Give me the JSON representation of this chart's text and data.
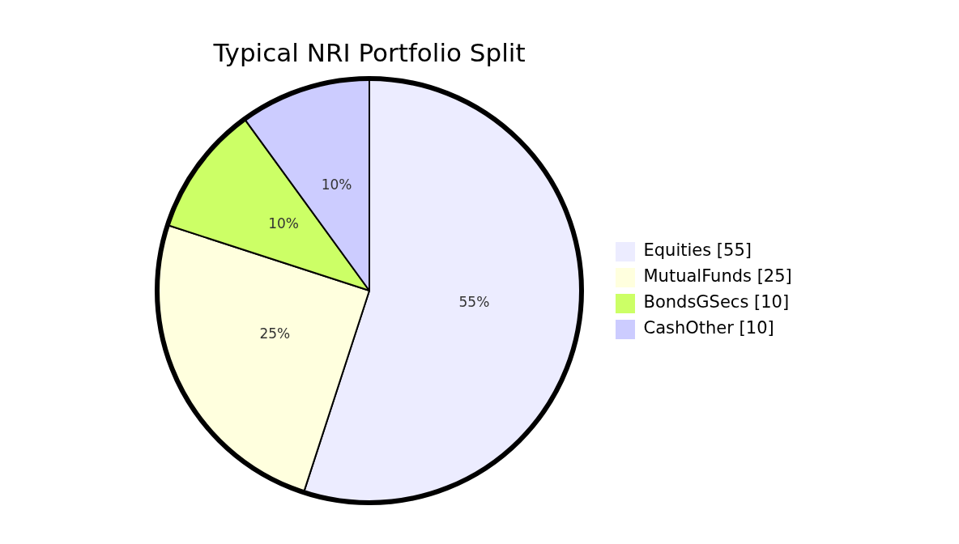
{
  "chart_data": {
    "type": "pie",
    "title": "Typical NRI Portfolio Split",
    "categories": [
      "Equities [55]",
      "MutualFunds [25]",
      "BondsGSecs [10]",
      "CashOther [10]"
    ],
    "values": [
      55,
      25,
      10,
      10
    ],
    "colors": [
      "#ececff",
      "#ffffde",
      "#ccff66",
      "#ccccff"
    ],
    "value_labels": [
      "55%",
      "25%",
      "10%",
      "10%"
    ],
    "legend": "right"
  }
}
